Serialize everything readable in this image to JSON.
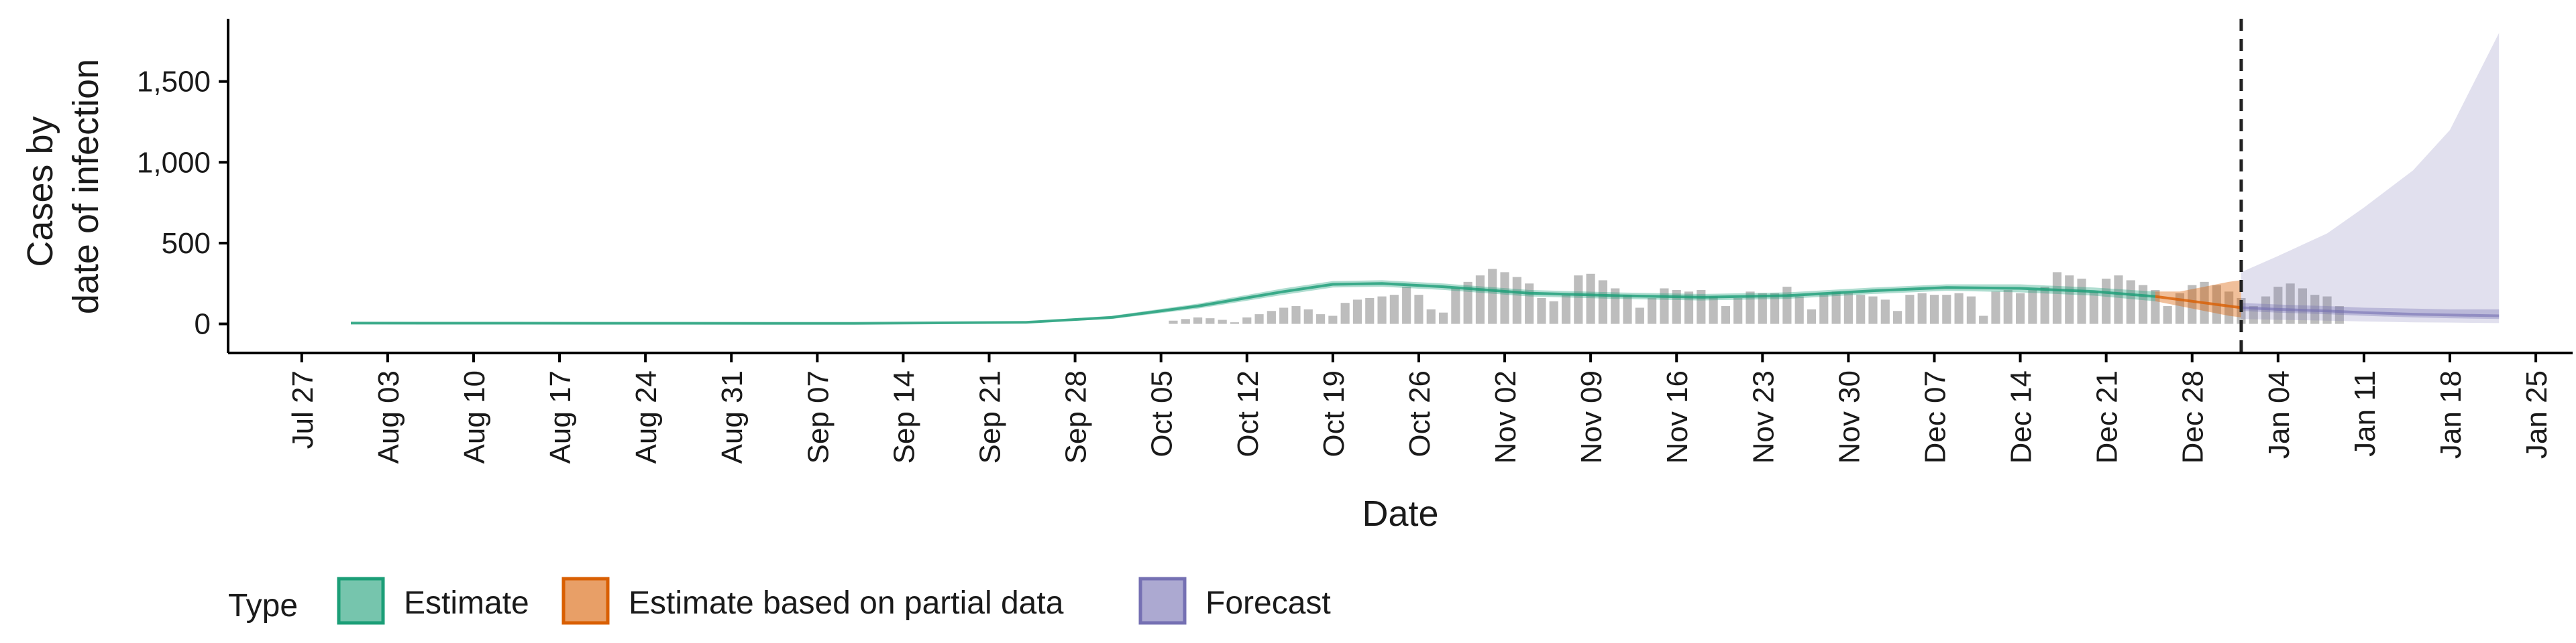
{
  "chart_data": {
    "type": "bar",
    "title": "",
    "xlabel": "Date",
    "ylabel_lines": [
      "Cases by",
      "date of infection"
    ],
    "ylim": [
      -180,
      1880
    ],
    "y_ticks": [
      0,
      500,
      1000,
      1500
    ],
    "y_tick_labels": [
      "0",
      "500",
      "1,000",
      "1,500"
    ],
    "x_range": [
      "2020-07-21",
      "2021-01-28"
    ],
    "x_ticks": [
      "2020-07-27",
      "2020-08-03",
      "2020-08-10",
      "2020-08-17",
      "2020-08-24",
      "2020-08-31",
      "2020-09-07",
      "2020-09-14",
      "2020-09-21",
      "2020-09-28",
      "2020-10-05",
      "2020-10-12",
      "2020-10-19",
      "2020-10-26",
      "2020-11-02",
      "2020-11-09",
      "2020-11-16",
      "2020-11-23",
      "2020-11-30",
      "2020-12-07",
      "2020-12-14",
      "2020-12-21",
      "2020-12-28",
      "2021-01-04",
      "2021-01-11",
      "2021-01-18",
      "2021-01-25"
    ],
    "x_tick_labels": [
      "Jul 27",
      "Aug 03",
      "Aug 10",
      "Aug 17",
      "Aug 24",
      "Aug 31",
      "Sep 07",
      "Sep 14",
      "Sep 21",
      "Sep 28",
      "Oct 05",
      "Oct 12",
      "Oct 19",
      "Oct 26",
      "Nov 02",
      "Nov 09",
      "Nov 16",
      "Nov 23",
      "Nov 30",
      "Dec 07",
      "Dec 14",
      "Dec 21",
      "Dec 28",
      "Jan 04",
      "Jan 11",
      "Jan 18",
      "Jan 25"
    ],
    "forecast_start": "2021-01-01",
    "grid": false,
    "legend_position": "bottom",
    "legend": {
      "title": "Type",
      "entries": [
        {
          "label": "Estimate",
          "color": "#1b9e77"
        },
        {
          "label": "Estimate based on partial data",
          "color": "#d95f02"
        },
        {
          "label": "Forecast",
          "color": "#7570b3"
        }
      ]
    },
    "reported_cases": {
      "start": "2020-10-06",
      "values": [
        20,
        30,
        40,
        35,
        25,
        10,
        40,
        60,
        80,
        100,
        110,
        90,
        60,
        50,
        130,
        150,
        160,
        170,
        180,
        230,
        180,
        90,
        70,
        220,
        260,
        300,
        340,
        320,
        290,
        250,
        160,
        140,
        180,
        300,
        310,
        270,
        220,
        180,
        100,
        160,
        220,
        210,
        200,
        210,
        170,
        110,
        160,
        200,
        190,
        190,
        230,
        170,
        90,
        180,
        200,
        190,
        180,
        170,
        150,
        80,
        180,
        190,
        180,
        180,
        190,
        170,
        50,
        200,
        210,
        190,
        210,
        230,
        320,
        300,
        280,
        200,
        280,
        300,
        270,
        240,
        210,
        110,
        190,
        240,
        260,
        240,
        200,
        160,
        110,
        170,
        230,
        250,
        220,
        180,
        170,
        110
      ]
    },
    "estimate": {
      "x": [
        "2020-07-31",
        "2020-08-20",
        "2020-09-10",
        "2020-09-24",
        "2020-10-01",
        "2020-10-08",
        "2020-10-15",
        "2020-10-19",
        "2020-10-23",
        "2020-10-28",
        "2020-11-04",
        "2020-11-11",
        "2020-11-18",
        "2020-11-25",
        "2020-12-02",
        "2020-12-08",
        "2020-12-14",
        "2020-12-20",
        "2020-12-25"
      ],
      "mean": [
        5,
        4,
        3,
        10,
        40,
        110,
        200,
        245,
        250,
        230,
        190,
        175,
        165,
        175,
        205,
        225,
        220,
        200,
        170
      ],
      "lower": [
        0,
        0,
        0,
        5,
        30,
        95,
        180,
        225,
        230,
        210,
        170,
        155,
        145,
        155,
        185,
        205,
        195,
        175,
        140
      ],
      "upper": [
        10,
        8,
        6,
        15,
        50,
        125,
        220,
        265,
        270,
        250,
        210,
        195,
        185,
        195,
        225,
        245,
        245,
        225,
        200
      ]
    },
    "estimate_partial": {
      "x": [
        "2020-12-25",
        "2020-12-27",
        "2020-12-29",
        "2020-12-31",
        "2021-01-01"
      ],
      "mean": [
        170,
        150,
        130,
        110,
        100
      ],
      "lower": [
        140,
        110,
        80,
        50,
        40
      ],
      "upper": [
        200,
        200,
        230,
        260,
        270
      ]
    },
    "forecast": {
      "x": [
        "2021-01-01",
        "2021-01-04",
        "2021-01-08",
        "2021-01-11",
        "2021-01-15",
        "2021-01-18",
        "2021-01-22"
      ],
      "mean": [
        100,
        90,
        80,
        70,
        60,
        55,
        50
      ],
      "lower": [
        30,
        25,
        20,
        15,
        10,
        8,
        5
      ],
      "upper": [
        320,
        420,
        560,
        720,
        950,
        1200,
        1800
      ],
      "inner_lower": [
        80,
        70,
        60,
        50,
        40,
        35,
        30
      ],
      "inner_upper": [
        130,
        120,
        110,
        100,
        95,
        90,
        90
      ]
    }
  }
}
